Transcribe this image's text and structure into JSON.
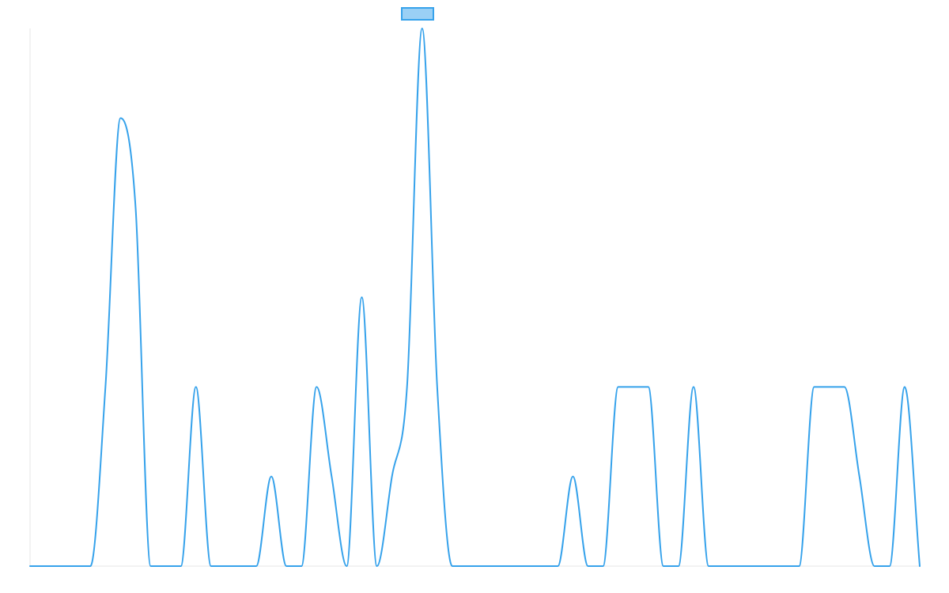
{
  "chart_data": {
    "type": "line",
    "title": "",
    "xlabel": "",
    "ylabel": "",
    "grid": false,
    "legend": {
      "position": "top-center",
      "label": "",
      "swatch_fill": "#9ad0f5",
      "swatch_stroke": "#36a2eb"
    },
    "series": [
      {
        "color": "#36a2eb",
        "values": [
          0,
          0,
          0,
          0,
          0,
          2,
          5,
          4,
          0,
          0,
          0,
          2,
          0,
          0,
          0,
          0,
          1,
          0,
          0,
          2,
          1,
          0,
          3,
          0,
          1,
          2,
          6,
          2,
          0,
          0,
          0,
          0,
          0,
          0,
          0,
          0,
          1,
          0,
          0,
          2,
          2,
          2,
          0,
          0,
          2,
          0,
          0,
          0,
          0,
          0,
          0,
          0,
          2,
          2,
          2,
          1,
          0,
          0,
          2,
          0
        ]
      }
    ],
    "ylim": [
      0,
      6
    ]
  }
}
